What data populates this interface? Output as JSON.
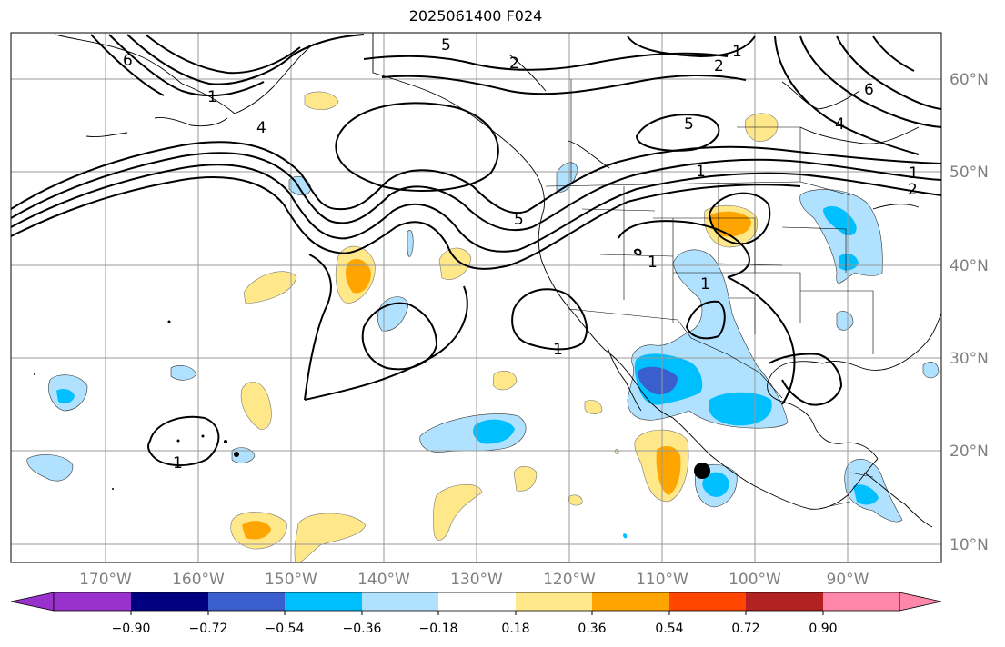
{
  "title": "2025061400 F024",
  "lat_labels": [
    "60°N",
    "50°N",
    "40°N",
    "30°N",
    "20°N",
    "10°N"
  ],
  "lon_labels": [
    "170°W",
    "160°W",
    "150°W",
    "140°W",
    "130°W",
    "120°W",
    "110°W",
    "100°W",
    "90°W"
  ],
  "colorbar": {
    "ticks": [
      "−0.90",
      "−0.72",
      "−0.54",
      "−0.36",
      "−0.18",
      "0.18",
      "0.36",
      "0.54",
      "0.72",
      "0.90"
    ],
    "colors": [
      "#9932cc",
      "#000080",
      "#3a5fcd",
      "#00bfff",
      "#b0e2ff",
      "#ffffff",
      "#ffe88a",
      "#ffa500",
      "#ff4500",
      "#b22222",
      "#ff88aa"
    ]
  },
  "contour_labels": [
    "5",
    "2",
    "2",
    "6",
    "4",
    "1",
    "5",
    "1",
    "1",
    "5",
    "1",
    "1",
    "6",
    "4",
    "1",
    "1",
    "2",
    "1"
  ],
  "colors": {
    "land_border": "#000000",
    "grid": "#999999",
    "marker": "#000000"
  }
}
